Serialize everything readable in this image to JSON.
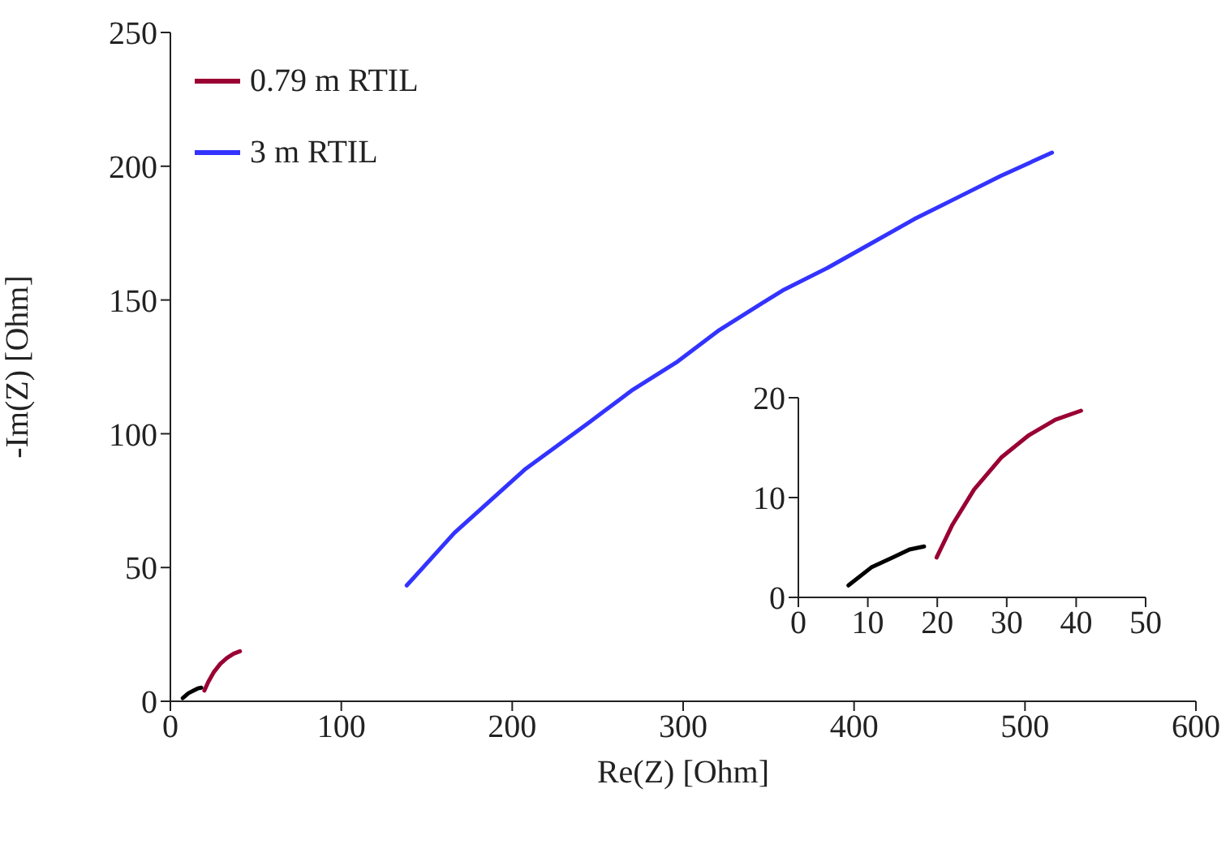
{
  "chart_data": [
    {
      "type": "line",
      "xlabel": "Re(Z) [Ohm]",
      "ylabel": "-Im(Z) [Ohm]",
      "xlim": [
        0,
        600
      ],
      "xticks": [
        0,
        100,
        200,
        300,
        400,
        500,
        600
      ],
      "ylim": [
        0,
        250
      ],
      "yticks": [
        0,
        50,
        100,
        150,
        200,
        250
      ],
      "legend": "top left",
      "marker": "none",
      "line_style": "solid",
      "series": [
        {
          "color": "#000000",
          "x": [
            7.2,
            10.5,
            13.6,
            16.0,
            18.1
          ],
          "values": [
            1.2,
            3.0,
            4.0,
            4.8,
            5.1
          ]
        },
        {
          "name": "0.79 m RTIL",
          "color": "#990033",
          "x": [
            19.9,
            22.2,
            25.3,
            29.2,
            33.1,
            37.0,
            40.7
          ],
          "values": [
            4.0,
            7.3,
            10.8,
            14.0,
            16.2,
            17.8,
            18.7
          ]
        },
        {
          "name": "3 m RTIL",
          "color": "#3333ff",
          "x": [
            138.3,
            166.1,
            207.3,
            245.3,
            270.6,
            295.9,
            321.2,
            346.5,
            359.2,
            384.5,
            409.9,
            435.1,
            460.5,
            485.8,
            515.8
          ],
          "values": [
            43.3,
            62.9,
            86.6,
            104.4,
            116.5,
            126.6,
            138.8,
            148.9,
            153.9,
            162,
            171.1,
            180.2,
            188.3,
            196.4,
            205.1
          ]
        }
      ]
    },
    {
      "type": "line",
      "xlim": [
        0,
        50
      ],
      "xticks": [
        0,
        10,
        20,
        30,
        40,
        50
      ],
      "ylim": [
        0,
        20
      ],
      "yticks": [
        0,
        10,
        20
      ],
      "marker": "none",
      "line_style": "solid",
      "series": [
        {
          "color": "#000000",
          "x": [
            7.2,
            10.5,
            13.6,
            16.0,
            18.1
          ],
          "values": [
            1.2,
            3.0,
            4.0,
            4.8,
            5.1
          ]
        },
        {
          "color": "#990033",
          "x": [
            19.9,
            22.2,
            25.3,
            29.2,
            33.1,
            37.0,
            40.7
          ],
          "values": [
            4.0,
            7.3,
            10.8,
            14.0,
            16.2,
            17.8,
            18.7
          ]
        }
      ]
    }
  ]
}
